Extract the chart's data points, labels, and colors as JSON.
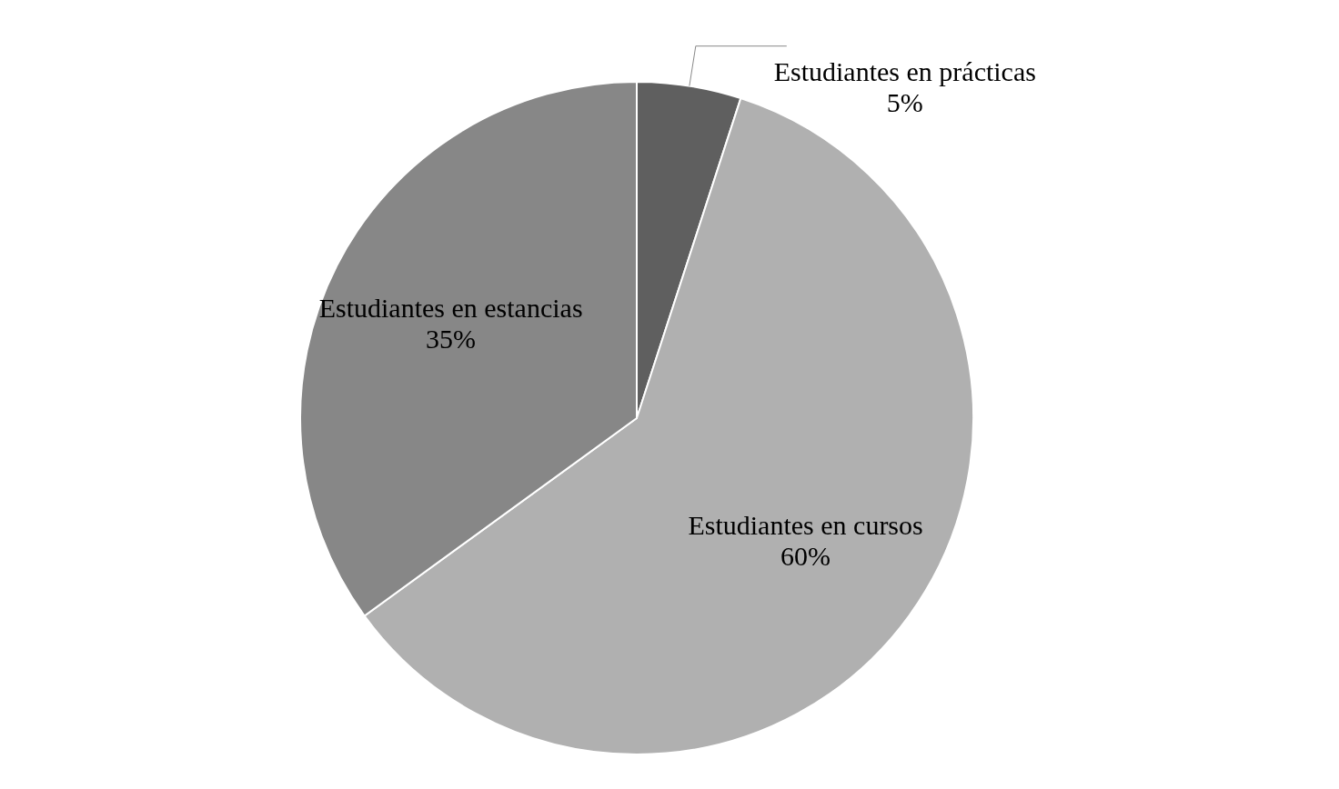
{
  "chart_data": {
    "type": "pie",
    "categories": [
      "Estudiantes en prácticas",
      "Estudiantes en cursos",
      "Estudiantes en estancias"
    ],
    "values": [
      5,
      60,
      35
    ],
    "colors": [
      "#5f5f5f",
      "#b0b0b0",
      "#878787"
    ],
    "value_labels": [
      "5%",
      "60%",
      "35%"
    ]
  }
}
